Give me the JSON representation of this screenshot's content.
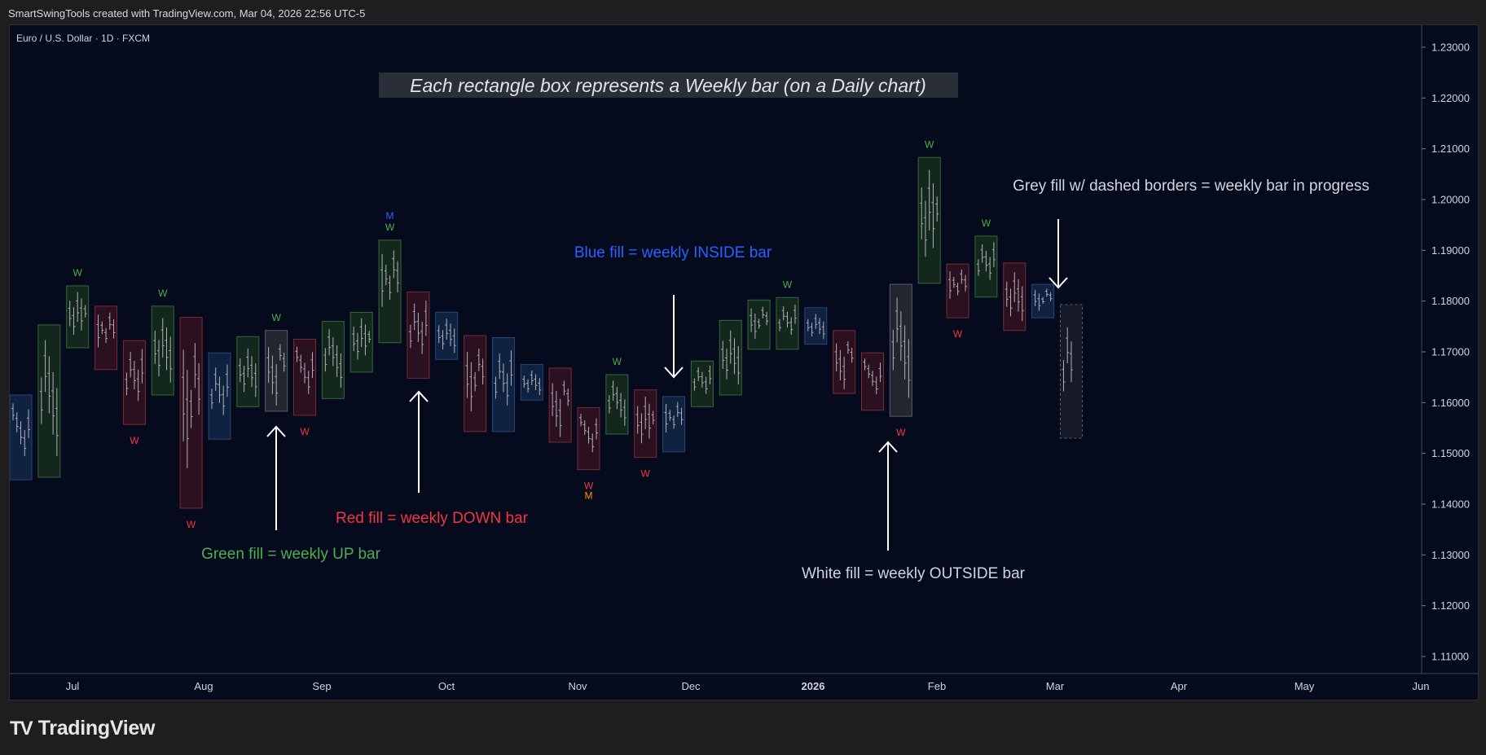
{
  "header": {
    "attribution": "SmartSwingTools created with TradingView.com, Mar 04, 2026 22:56 UTC-5",
    "symbol": "Euro / U.S. Dollar · 1D · FXCM"
  },
  "branding": {
    "logo_mark": "TV",
    "logo_text": "TradingView"
  },
  "colors": {
    "background": "#050a1d",
    "up": "#4caf50",
    "down": "#f23645",
    "inside": "#2962ff",
    "outside": "#d1d4dc",
    "in_progress": "#787b86",
    "monthly_orange": "#ff9800"
  },
  "chart_data": {
    "type": "bar",
    "title": "Each rectangle box represents a Weekly bar (on a Daily chart)",
    "timeframe": "1D",
    "y_ticks": [
      "1.23000",
      "1.22000",
      "1.21000",
      "1.20000",
      "1.19000",
      "1.18000",
      "1.17000",
      "1.16000",
      "1.15000",
      "1.14000",
      "1.13000",
      "1.12000",
      "1.11000"
    ],
    "ylim": [
      1.105,
      1.234
    ],
    "x_ticks": [
      "Jul",
      "Aug",
      "Sep",
      "Oct",
      "Nov",
      "Dec",
      "2026",
      "Feb",
      "Mar",
      "Apr",
      "May",
      "Jun"
    ],
    "x_tick_emphasis": [
      "2026"
    ],
    "grid": false,
    "weekly_bars": [
      {
        "type": "inside",
        "high": 1.1615,
        "low": 1.1448
      },
      {
        "type": "up",
        "high": 1.1753,
        "low": 1.1453
      },
      {
        "type": "up",
        "high": 1.183,
        "low": 1.1708
      },
      {
        "type": "down",
        "high": 1.179,
        "low": 1.1665
      },
      {
        "type": "down",
        "high": 1.1722,
        "low": 1.1557
      },
      {
        "type": "up",
        "high": 1.179,
        "low": 1.1615
      },
      {
        "type": "down",
        "high": 1.1768,
        "low": 1.1392
      },
      {
        "type": "inside",
        "high": 1.1698,
        "low": 1.1528
      },
      {
        "type": "up",
        "high": 1.173,
        "low": 1.1592
      },
      {
        "type": "outside",
        "high": 1.1742,
        "low": 1.1583
      },
      {
        "type": "down",
        "high": 1.1725,
        "low": 1.1575
      },
      {
        "type": "up",
        "high": 1.176,
        "low": 1.1608
      },
      {
        "type": "up",
        "high": 1.1778,
        "low": 1.166
      },
      {
        "type": "up",
        "high": 1.192,
        "low": 1.1718
      },
      {
        "type": "down",
        "high": 1.1818,
        "low": 1.1648
      },
      {
        "type": "inside",
        "high": 1.1778,
        "low": 1.1685
      },
      {
        "type": "down",
        "high": 1.1732,
        "low": 1.1543
      },
      {
        "type": "inside",
        "high": 1.1728,
        "low": 1.1543
      },
      {
        "type": "inside",
        "high": 1.1675,
        "low": 1.1605
      },
      {
        "type": "down",
        "high": 1.1668,
        "low": 1.1522
      },
      {
        "type": "down",
        "high": 1.159,
        "low": 1.1468
      },
      {
        "type": "up",
        "high": 1.1655,
        "low": 1.1538
      },
      {
        "type": "down",
        "high": 1.1625,
        "low": 1.1492
      },
      {
        "type": "inside",
        "high": 1.1612,
        "low": 1.1503
      },
      {
        "type": "up",
        "high": 1.1682,
        "low": 1.1592
      },
      {
        "type": "up",
        "high": 1.1762,
        "low": 1.1615
      },
      {
        "type": "up",
        "high": 1.1802,
        "low": 1.1705
      },
      {
        "type": "up",
        "high": 1.1807,
        "low": 1.1705
      },
      {
        "type": "inside",
        "high": 1.1787,
        "low": 1.1715
      },
      {
        "type": "down",
        "high": 1.1742,
        "low": 1.1618
      },
      {
        "type": "down",
        "high": 1.1698,
        "low": 1.1585
      },
      {
        "type": "outside",
        "high": 1.1833,
        "low": 1.1573
      },
      {
        "type": "up",
        "high": 1.2083,
        "low": 1.1835
      },
      {
        "type": "down",
        "high": 1.1873,
        "low": 1.1767
      },
      {
        "type": "up",
        "high": 1.1928,
        "low": 1.1808
      },
      {
        "type": "down",
        "high": 1.1875,
        "low": 1.1742
      },
      {
        "type": "inside",
        "high": 1.1833,
        "low": 1.1767
      },
      {
        "type": "in_progress",
        "high": 1.1793,
        "low": 1.153
      }
    ],
    "swing_labels": [
      {
        "bar": 2,
        "text": "W",
        "pos": "above",
        "color": "up"
      },
      {
        "bar": 4,
        "text": "W",
        "pos": "below",
        "color": "down"
      },
      {
        "bar": 5,
        "text": "W",
        "pos": "above",
        "color": "up"
      },
      {
        "bar": 6,
        "text": "W",
        "pos": "below",
        "color": "down"
      },
      {
        "bar": 9,
        "text": "W",
        "pos": "above",
        "color": "up"
      },
      {
        "bar": 10,
        "text": "W",
        "pos": "below",
        "color": "down"
      },
      {
        "bar": 13,
        "text": "W",
        "pos": "above",
        "color": "up",
        "offset": 0
      },
      {
        "bar": 13,
        "text": "M",
        "pos": "above",
        "color": "inside",
        "offset": 1
      },
      {
        "bar": 20,
        "text": "W",
        "pos": "below",
        "color": "down",
        "offset": 0
      },
      {
        "bar": 20,
        "text": "M",
        "pos": "below",
        "color": "monthly_orange",
        "offset": 1
      },
      {
        "bar": 21,
        "text": "W",
        "pos": "above",
        "color": "up"
      },
      {
        "bar": 22,
        "text": "W",
        "pos": "below",
        "color": "down"
      },
      {
        "bar": 27,
        "text": "W",
        "pos": "above",
        "color": "up"
      },
      {
        "bar": 31,
        "text": "W",
        "pos": "below",
        "color": "down"
      },
      {
        "bar": 32,
        "text": "W",
        "pos": "above",
        "color": "up"
      },
      {
        "bar": 33,
        "text": "W",
        "pos": "below",
        "color": "down"
      },
      {
        "bar": 34,
        "text": "W",
        "pos": "above",
        "color": "up"
      }
    ],
    "annotations": [
      {
        "text": "Green fill = weekly UP bar",
        "color": "up"
      },
      {
        "text": "Red fill = weekly DOWN bar",
        "color": "down"
      },
      {
        "text": "Blue fill = weekly INSIDE bar",
        "color": "inside"
      },
      {
        "text": "White fill = weekly OUTSIDE bar",
        "color": "outside"
      },
      {
        "text": "Grey fill w/ dashed borders  = weekly bar in progress",
        "color": "outside"
      }
    ]
  }
}
